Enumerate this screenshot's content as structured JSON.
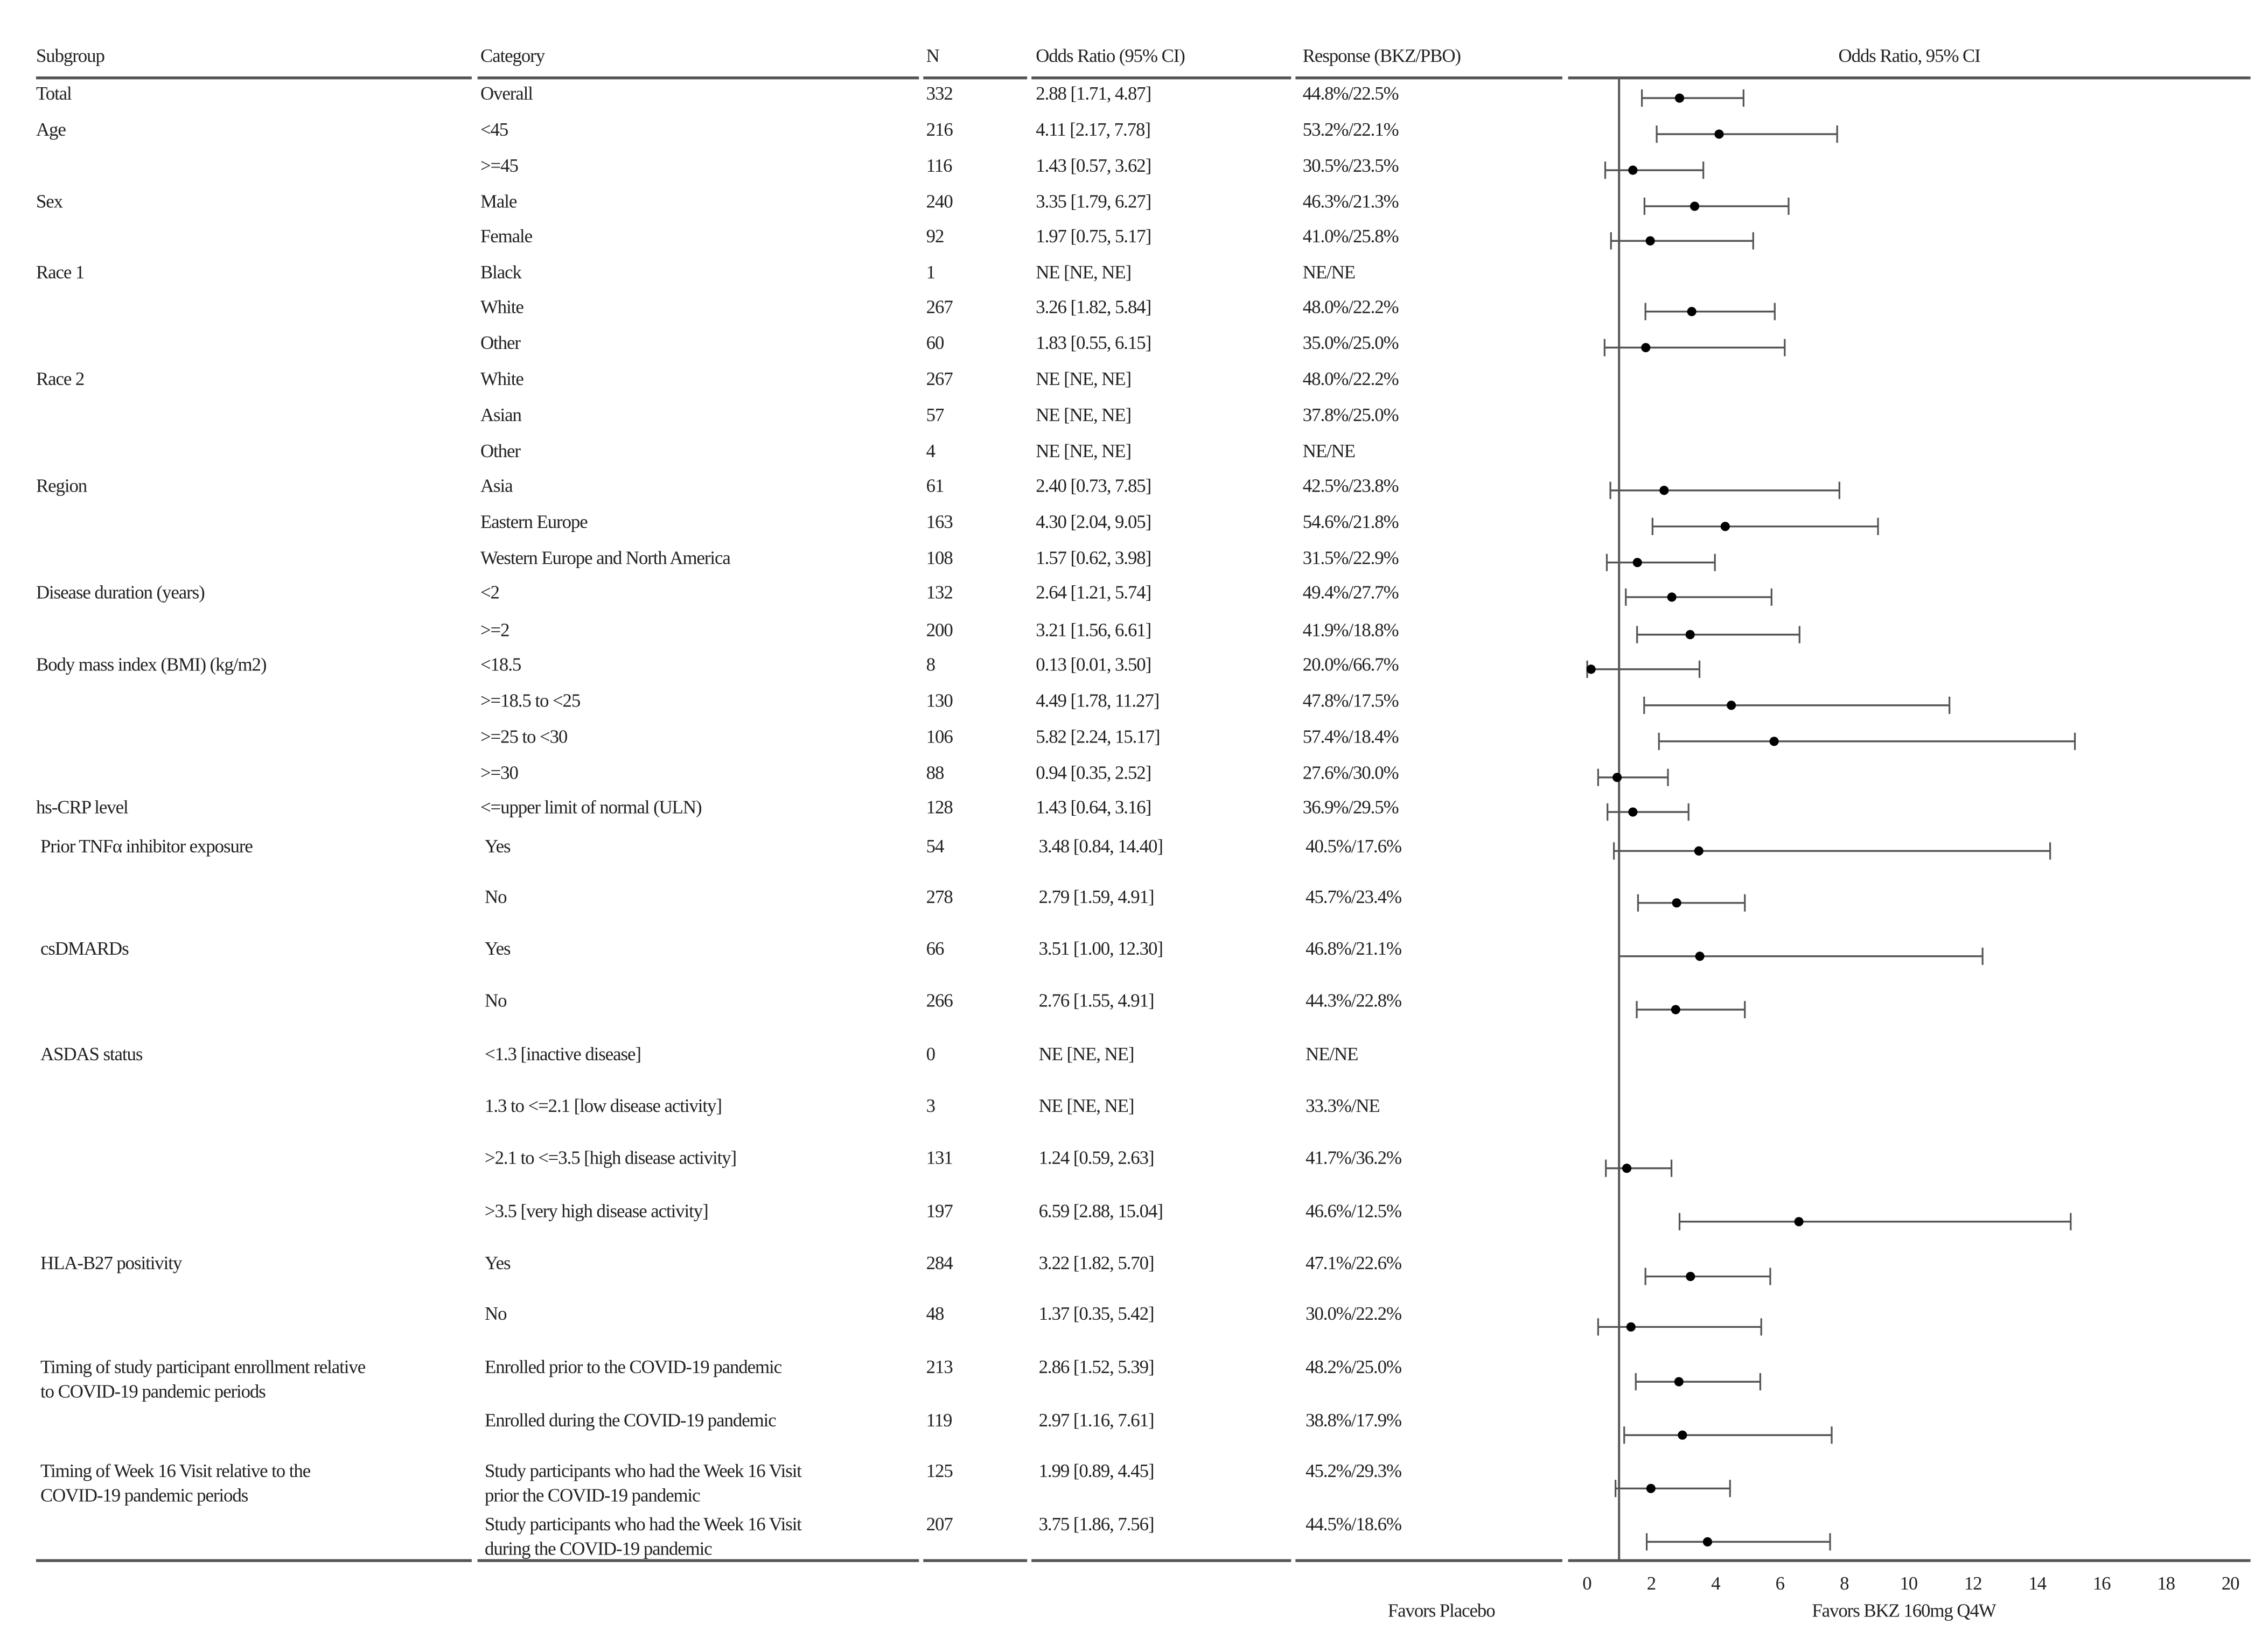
{
  "headers": {
    "subgroup": "Subgroup",
    "category": "Category",
    "n": "N",
    "or": "Odds Ratio (95% CI)",
    "response": "Response (BKZ/PBO)",
    "plot": "Odds Ratio, 95% CI"
  },
  "chart_data": {
    "type": "forest",
    "xlabel_left": "Favors Placebo",
    "xlabel_right": "Favors BKZ 160mg Q4W",
    "xlim": [
      0,
      20
    ],
    "xticks": [
      "0",
      "2",
      "4",
      "6",
      "8",
      "10",
      "12",
      "14",
      "16",
      "18",
      "20"
    ],
    "reference_line": 1,
    "colors": {
      "marker": "#000000",
      "line": "#555555"
    },
    "rows": [
      {
        "subgroup": "Total",
        "category": "Overall",
        "n": "332",
        "or_text": "2.88 [1.71, 4.87]",
        "response": "44.8%/22.5%",
        "or": 2.88,
        "lo": 1.71,
        "hi": 4.87
      },
      {
        "subgroup": "Age",
        "category": "<45",
        "n": "216",
        "or_text": "4.11 [2.17, 7.78]",
        "response": "53.2%/22.1%",
        "or": 4.11,
        "lo": 2.17,
        "hi": 7.78
      },
      {
        "subgroup": "",
        "category": ">=45",
        "n": "116",
        "or_text": "1.43 [0.57, 3.62]",
        "response": "30.5%/23.5%",
        "or": 1.43,
        "lo": 0.57,
        "hi": 3.62
      },
      {
        "subgroup": "Sex",
        "category": "Male",
        "n": "240",
        "or_text": "3.35 [1.79, 6.27]",
        "response": "46.3%/21.3%",
        "or": 3.35,
        "lo": 1.79,
        "hi": 6.27
      },
      {
        "subgroup": "",
        "category": "Female",
        "n": "92",
        "or_text": "1.97 [0.75, 5.17]",
        "response": "41.0%/25.8%",
        "or": 1.97,
        "lo": 0.75,
        "hi": 5.17
      },
      {
        "subgroup": "Race 1",
        "category": "Black",
        "n": "1",
        "or_text": "NE [NE, NE]",
        "response": "NE/NE",
        "or": null,
        "lo": null,
        "hi": null
      },
      {
        "subgroup": "",
        "category": "White",
        "n": "267",
        "or_text": "3.26 [1.82, 5.84]",
        "response": "48.0%/22.2%",
        "or": 3.26,
        "lo": 1.82,
        "hi": 5.84
      },
      {
        "subgroup": "",
        "category": "Other",
        "n": "60",
        "or_text": "1.83 [0.55, 6.15]",
        "response": "35.0%/25.0%",
        "or": 1.83,
        "lo": 0.55,
        "hi": 6.15
      },
      {
        "subgroup": "Race 2",
        "category": "White",
        "n": "267",
        "or_text": "NE [NE, NE]",
        "response": "48.0%/22.2%",
        "or": null,
        "lo": null,
        "hi": null
      },
      {
        "subgroup": "",
        "category": "Asian",
        "n": "57",
        "or_text": "NE [NE, NE]",
        "response": "37.8%/25.0%",
        "or": null,
        "lo": null,
        "hi": null
      },
      {
        "subgroup": "",
        "category": "Other",
        "n": "4",
        "or_text": "NE [NE, NE]",
        "response": "NE/NE",
        "or": null,
        "lo": null,
        "hi": null
      },
      {
        "subgroup": "Region",
        "category": "Asia",
        "n": "61",
        "or_text": "2.40 [0.73, 7.85]",
        "response": "42.5%/23.8%",
        "or": 2.4,
        "lo": 0.73,
        "hi": 7.85
      },
      {
        "subgroup": "",
        "category": "Eastern Europe",
        "n": "163",
        "or_text": "4.30 [2.04, 9.05]",
        "response": "54.6%/21.8%",
        "or": 4.3,
        "lo": 2.04,
        "hi": 9.05
      },
      {
        "subgroup": "",
        "category": "Western Europe and North America",
        "n": "108",
        "or_text": "1.57 [0.62, 3.98]",
        "response": "31.5%/22.9%",
        "or": 1.57,
        "lo": 0.62,
        "hi": 3.98
      },
      {
        "subgroup": "Disease duration (years)",
        "category": "<2",
        "n": "132",
        "or_text": "2.64 [1.21, 5.74]",
        "response": "49.4%/27.7%",
        "or": 2.64,
        "lo": 1.21,
        "hi": 5.74
      },
      {
        "subgroup": "",
        "category": ">=2",
        "n": "200",
        "or_text": "3.21 [1.56, 6.61]",
        "response": "41.9%/18.8%",
        "or": 3.21,
        "lo": 1.56,
        "hi": 6.61
      },
      {
        "subgroup": "Body mass index (BMI) (kg/m2)",
        "category": "<18.5",
        "n": "8",
        "or_text": "0.13 [0.01, 3.50]",
        "response": "20.0%/66.7%",
        "or": 0.13,
        "lo": 0.01,
        "hi": 3.5
      },
      {
        "subgroup": "",
        "category": ">=18.5 to <25",
        "n": "130",
        "or_text": "4.49 [1.78, 11.27]",
        "response": "47.8%/17.5%",
        "or": 4.49,
        "lo": 1.78,
        "hi": 11.27
      },
      {
        "subgroup": "",
        "category": ">=25 to <30",
        "n": "106",
        "or_text": "5.82 [2.24, 15.17]",
        "response": "57.4%/18.4%",
        "or": 5.82,
        "lo": 2.24,
        "hi": 15.17
      },
      {
        "subgroup": "",
        "category": ">=30",
        "n": "88",
        "or_text": "0.94 [0.35, 2.52]",
        "response": "27.6%/30.0%",
        "or": 0.94,
        "lo": 0.35,
        "hi": 2.52
      },
      {
        "subgroup": "hs-CRP level",
        "category": "<=upper limit of normal (ULN)",
        "n": "128",
        "or_text": "1.43 [0.64, 3.16]",
        "response": "36.9%/29.5%",
        "or": 1.43,
        "lo": 0.64,
        "hi": 3.16
      },
      {
        "subgroup": "Prior TNFα inhibitor exposure",
        "category": "Yes",
        "n": "54",
        "or_text": "3.48 [0.84, 14.40]",
        "response": "40.5%/17.6%",
        "or": 3.48,
        "lo": 0.84,
        "hi": 14.4
      },
      {
        "subgroup": "",
        "category": "No",
        "n": "278",
        "or_text": "2.79 [1.59, 4.91]",
        "response": "45.7%/23.4%",
        "or": 2.79,
        "lo": 1.59,
        "hi": 4.91
      },
      {
        "subgroup": "csDMARDs",
        "category": "Yes",
        "n": "66",
        "or_text": "3.51 [1.00, 12.30]",
        "response": "46.8%/21.1%",
        "or": 3.51,
        "lo": 1.0,
        "hi": 12.3
      },
      {
        "subgroup": "",
        "category": "No",
        "n": "266",
        "or_text": "2.76 [1.55, 4.91]",
        "response": "44.3%/22.8%",
        "or": 2.76,
        "lo": 1.55,
        "hi": 4.91
      },
      {
        "subgroup": "ASDAS status",
        "category": "<1.3 [inactive disease]",
        "n": "0",
        "or_text": "NE [NE, NE]",
        "response": "NE/NE",
        "or": null,
        "lo": null,
        "hi": null
      },
      {
        "subgroup": "",
        "category": "1.3 to <=2.1 [low disease activity]",
        "n": "3",
        "or_text": "NE [NE, NE]",
        "response": "33.3%/NE",
        "or": null,
        "lo": null,
        "hi": null
      },
      {
        "subgroup": "",
        "category": ">2.1 to <=3.5 [high disease activity]",
        "n": "131",
        "or_text": "1.24 [0.59, 2.63]",
        "response": "41.7%/36.2%",
        "or": 1.24,
        "lo": 0.59,
        "hi": 2.63
      },
      {
        "subgroup": "",
        "category": ">3.5 [very high disease activity]",
        "n": "197",
        "or_text": "6.59 [2.88, 15.04]",
        "response": "46.6%/12.5%",
        "or": 6.59,
        "lo": 2.88,
        "hi": 15.04
      },
      {
        "subgroup": "HLA-B27 positivity",
        "category": "Yes",
        "n": "284",
        "or_text": "3.22 [1.82, 5.70]",
        "response": "47.1%/22.6%",
        "or": 3.22,
        "lo": 1.82,
        "hi": 5.7
      },
      {
        "subgroup": "",
        "category": "No",
        "n": "48",
        "or_text": "1.37 [0.35, 5.42]",
        "response": "30.0%/22.2%",
        "or": 1.37,
        "lo": 0.35,
        "hi": 5.42
      },
      {
        "subgroup": "Timing of study participant enrollment relative\nto COVID-19 pandemic periods",
        "category": "Enrolled prior to the COVID-19 pandemic",
        "n": "213",
        "or_text": "2.86 [1.52, 5.39]",
        "response": "48.2%/25.0%",
        "or": 2.86,
        "lo": 1.52,
        "hi": 5.39
      },
      {
        "subgroup": "",
        "category": "Enrolled during the COVID-19 pandemic",
        "n": "119",
        "or_text": "2.97 [1.16, 7.61]",
        "response": "38.8%/17.9%",
        "or": 2.97,
        "lo": 1.16,
        "hi": 7.61
      },
      {
        "subgroup": "Timing of Week 16 Visit relative to the\nCOVID-19 pandemic periods",
        "category": "Study participants who had the Week 16 Visit\nprior the COVID-19 pandemic",
        "n": "125",
        "or_text": "1.99 [0.89, 4.45]",
        "response": "45.2%/29.3%",
        "or": 1.99,
        "lo": 0.89,
        "hi": 4.45
      },
      {
        "subgroup": "",
        "category": "Study participants who had the Week 16 Visit\nduring the COVID-19 pandemic",
        "n": "207",
        "or_text": "3.75 [1.86, 7.56]",
        "response": "44.5%/18.6%",
        "or": 3.75,
        "lo": 1.86,
        "hi": 7.56
      }
    ]
  }
}
